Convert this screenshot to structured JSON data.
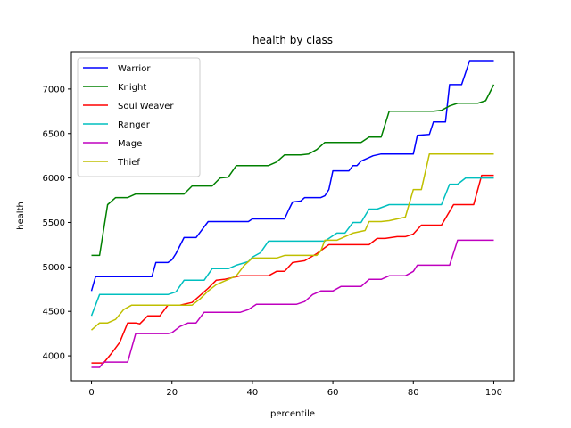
{
  "chart_data": {
    "type": "line",
    "title": "health by class",
    "xlabel": "percentile",
    "ylabel": "health",
    "xlim": [
      -5,
      105
    ],
    "ylim": [
      3720,
      7420
    ],
    "xticks": [
      0,
      20,
      40,
      60,
      80,
      100
    ],
    "yticks": [
      4000,
      4500,
      5000,
      5500,
      6000,
      6500,
      7000
    ],
    "legend_position": "top-left",
    "grid": false,
    "series": [
      {
        "name": "Warrior",
        "color": "#0000ff",
        "points": [
          [
            0,
            4730
          ],
          [
            1,
            4890
          ],
          [
            5,
            4890
          ],
          [
            10,
            4890
          ],
          [
            15,
            4890
          ],
          [
            16,
            5050
          ],
          [
            19,
            5050
          ],
          [
            20,
            5080
          ],
          [
            21,
            5150
          ],
          [
            23,
            5330
          ],
          [
            26,
            5330
          ],
          [
            29,
            5510
          ],
          [
            35,
            5510
          ],
          [
            39,
            5510
          ],
          [
            40,
            5540
          ],
          [
            44,
            5540
          ],
          [
            48,
            5540
          ],
          [
            49,
            5640
          ],
          [
            50,
            5730
          ],
          [
            52,
            5740
          ],
          [
            53,
            5780
          ],
          [
            57,
            5780
          ],
          [
            58,
            5800
          ],
          [
            59,
            5870
          ],
          [
            60,
            6080
          ],
          [
            64,
            6080
          ],
          [
            65,
            6140
          ],
          [
            66,
            6140
          ],
          [
            67,
            6190
          ],
          [
            70,
            6250
          ],
          [
            72,
            6270
          ],
          [
            78,
            6270
          ],
          [
            80,
            6270
          ],
          [
            81,
            6480
          ],
          [
            84,
            6490
          ],
          [
            85,
            6630
          ],
          [
            88,
            6630
          ],
          [
            89,
            7050
          ],
          [
            92,
            7050
          ],
          [
            94,
            7320
          ],
          [
            100,
            7320
          ]
        ]
      },
      {
        "name": "Knight",
        "color": "#008000",
        "points": [
          [
            0,
            5130
          ],
          [
            2,
            5130
          ],
          [
            4,
            5700
          ],
          [
            6,
            5780
          ],
          [
            9,
            5780
          ],
          [
            11,
            5820
          ],
          [
            15,
            5820
          ],
          [
            23,
            5820
          ],
          [
            25,
            5910
          ],
          [
            28,
            5910
          ],
          [
            30,
            5910
          ],
          [
            32,
            6000
          ],
          [
            34,
            6010
          ],
          [
            36,
            6140
          ],
          [
            44,
            6140
          ],
          [
            46,
            6180
          ],
          [
            48,
            6260
          ],
          [
            52,
            6260
          ],
          [
            54,
            6270
          ],
          [
            56,
            6320
          ],
          [
            58,
            6400
          ],
          [
            65,
            6400
          ],
          [
            67,
            6400
          ],
          [
            69,
            6460
          ],
          [
            72,
            6460
          ],
          [
            74,
            6750
          ],
          [
            80,
            6750
          ],
          [
            85,
            6750
          ],
          [
            87,
            6760
          ],
          [
            89,
            6810
          ],
          [
            91,
            6840
          ],
          [
            96,
            6840
          ],
          [
            98,
            6870
          ],
          [
            100,
            7050
          ]
        ]
      },
      {
        "name": "Soul Weaver",
        "color": "#ff0000",
        "points": [
          [
            0,
            3920
          ],
          [
            3,
            3920
          ],
          [
            5,
            4030
          ],
          [
            7,
            4150
          ],
          [
            9,
            4370
          ],
          [
            11,
            4370
          ],
          [
            12,
            4360
          ],
          [
            14,
            4450
          ],
          [
            17,
            4450
          ],
          [
            19,
            4570
          ],
          [
            22,
            4570
          ],
          [
            24,
            4590
          ],
          [
            25,
            4600
          ],
          [
            27,
            4680
          ],
          [
            29,
            4760
          ],
          [
            31,
            4850
          ],
          [
            33,
            4860
          ],
          [
            35,
            4880
          ],
          [
            37,
            4900
          ],
          [
            43,
            4900
          ],
          [
            44,
            4900
          ],
          [
            46,
            4950
          ],
          [
            48,
            4950
          ],
          [
            50,
            5050
          ],
          [
            53,
            5070
          ],
          [
            56,
            5150
          ],
          [
            59,
            5250
          ],
          [
            66,
            5250
          ],
          [
            69,
            5250
          ],
          [
            71,
            5320
          ],
          [
            73,
            5320
          ],
          [
            76,
            5340
          ],
          [
            78,
            5340
          ],
          [
            80,
            5370
          ],
          [
            82,
            5470
          ],
          [
            87,
            5470
          ],
          [
            90,
            5700
          ],
          [
            93,
            5700
          ],
          [
            95,
            5700
          ],
          [
            97,
            6030
          ],
          [
            100,
            6030
          ]
        ]
      },
      {
        "name": "Ranger",
        "color": "#00bfbf",
        "points": [
          [
            0,
            4450
          ],
          [
            2,
            4690
          ],
          [
            10,
            4690
          ],
          [
            15,
            4690
          ],
          [
            19,
            4690
          ],
          [
            21,
            4720
          ],
          [
            23,
            4850
          ],
          [
            25,
            4850
          ],
          [
            28,
            4850
          ],
          [
            30,
            4980
          ],
          [
            34,
            4980
          ],
          [
            36,
            5020
          ],
          [
            39,
            5060
          ],
          [
            40,
            5110
          ],
          [
            42,
            5160
          ],
          [
            44,
            5290
          ],
          [
            52,
            5290
          ],
          [
            56,
            5290
          ],
          [
            58,
            5290
          ],
          [
            61,
            5380
          ],
          [
            63,
            5380
          ],
          [
            65,
            5500
          ],
          [
            67,
            5500
          ],
          [
            69,
            5650
          ],
          [
            71,
            5650
          ],
          [
            74,
            5700
          ],
          [
            78,
            5700
          ],
          [
            87,
            5700
          ],
          [
            89,
            5930
          ],
          [
            91,
            5930
          ],
          [
            93,
            6000
          ],
          [
            100,
            6000
          ]
        ]
      },
      {
        "name": "Mage",
        "color": "#bf00bf",
        "points": [
          [
            0,
            3870
          ],
          [
            2,
            3870
          ],
          [
            3,
            3930
          ],
          [
            9,
            3930
          ],
          [
            11,
            4250
          ],
          [
            17,
            4250
          ],
          [
            19,
            4250
          ],
          [
            20,
            4260
          ],
          [
            22,
            4330
          ],
          [
            24,
            4370
          ],
          [
            26,
            4370
          ],
          [
            28,
            4490
          ],
          [
            32,
            4490
          ],
          [
            37,
            4490
          ],
          [
            39,
            4520
          ],
          [
            41,
            4580
          ],
          [
            51,
            4580
          ],
          [
            53,
            4610
          ],
          [
            55,
            4690
          ],
          [
            57,
            4730
          ],
          [
            60,
            4730
          ],
          [
            62,
            4780
          ],
          [
            67,
            4780
          ],
          [
            69,
            4860
          ],
          [
            72,
            4860
          ],
          [
            74,
            4900
          ],
          [
            78,
            4900
          ],
          [
            80,
            4950
          ],
          [
            81,
            5020
          ],
          [
            89,
            5020
          ],
          [
            91,
            5300
          ],
          [
            93,
            5300
          ],
          [
            100,
            5300
          ]
        ]
      },
      {
        "name": "Thief",
        "color": "#bfbf00",
        "points": [
          [
            0,
            4290
          ],
          [
            2,
            4370
          ],
          [
            4,
            4370
          ],
          [
            6,
            4410
          ],
          [
            8,
            4520
          ],
          [
            10,
            4570
          ],
          [
            18,
            4570
          ],
          [
            25,
            4570
          ],
          [
            27,
            4640
          ],
          [
            29,
            4730
          ],
          [
            31,
            4800
          ],
          [
            34,
            4860
          ],
          [
            36,
            4900
          ],
          [
            38,
            5020
          ],
          [
            40,
            5100
          ],
          [
            46,
            5100
          ],
          [
            48,
            5130
          ],
          [
            52,
            5130
          ],
          [
            56,
            5130
          ],
          [
            57,
            5180
          ],
          [
            58,
            5300
          ],
          [
            61,
            5300
          ],
          [
            63,
            5340
          ],
          [
            65,
            5380
          ],
          [
            68,
            5410
          ],
          [
            69,
            5510
          ],
          [
            72,
            5510
          ],
          [
            74,
            5520
          ],
          [
            76,
            5540
          ],
          [
            78,
            5560
          ],
          [
            80,
            5870
          ],
          [
            82,
            5870
          ],
          [
            84,
            6270
          ],
          [
            90,
            6270
          ],
          [
            100,
            6270
          ]
        ]
      }
    ]
  }
}
